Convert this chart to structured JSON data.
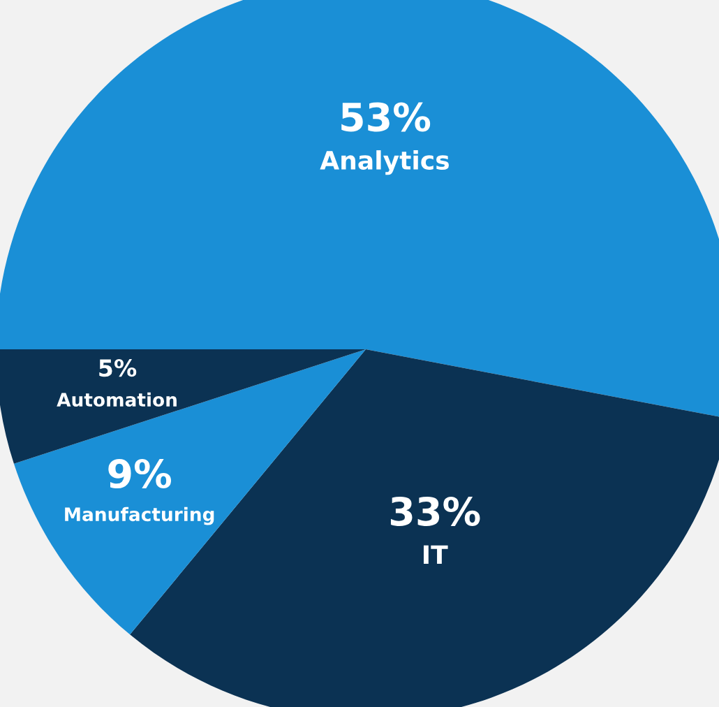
{
  "chart_data": {
    "type": "pie",
    "categories": [
      "Analytics",
      "IT",
      "Manufacturing",
      "Automation"
    ],
    "values": [
      53,
      33,
      9,
      5
    ],
    "value_labels": [
      "53%",
      "33%",
      "9%",
      "5%"
    ],
    "colors": [
      "#1a8fd6",
      "#0b3253",
      "#1a8fd6",
      "#0b3253"
    ]
  }
}
